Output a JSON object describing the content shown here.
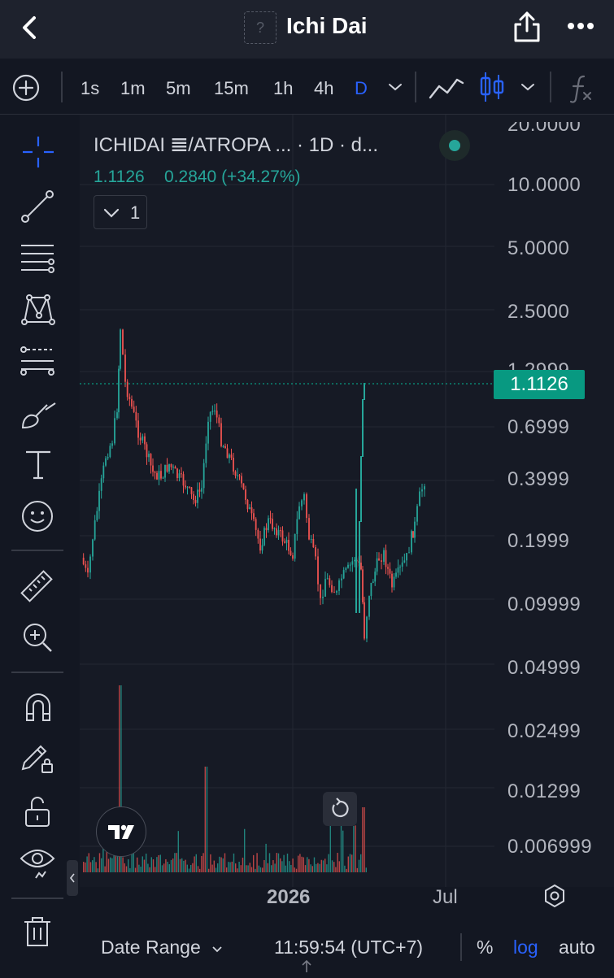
{
  "header": {
    "title": "Ichi Dai",
    "logo_placeholder": "?"
  },
  "timeframes": [
    "1s",
    "1m",
    "5m",
    "15m",
    "1h",
    "4h",
    "D"
  ],
  "timeframe_selected": "D",
  "legend": {
    "symbol_line": "ICHIDAI 𝌆/ATROPA ... · 1D · d...",
    "price": "1.1126",
    "change": "0.2840 (+34.27%)",
    "collapse_count": "1"
  },
  "price_axis": {
    "labels": [
      "20.0000",
      "10.0000",
      "5.0000",
      "2.5000",
      "1.2999",
      "0.6999",
      "0.3999",
      "0.1999",
      "0.09999",
      "0.04999",
      "0.02499",
      "0.01299",
      "0.006999"
    ],
    "current_price_label": "1.1126"
  },
  "time_axis": {
    "labels": [
      "2026",
      "Jul"
    ]
  },
  "bottom": {
    "date_range": "Date Range",
    "clock": "11:59:54 (UTC+7)",
    "percent": "%",
    "log": "log",
    "auto": "auto"
  },
  "colors": {
    "up": "#26a69a",
    "down": "#ef5350",
    "accent": "#2962ff",
    "price_tag": "#089981"
  }
}
